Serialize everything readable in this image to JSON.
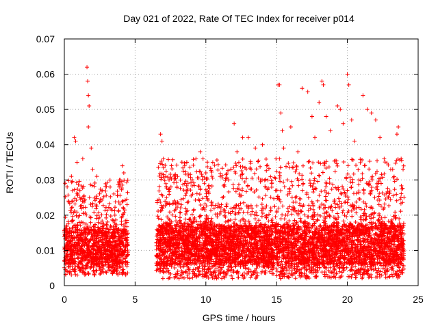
{
  "chart_data": {
    "type": "scatter",
    "title": "Day 021 of 2022, Rate Of TEC Index for receiver p014",
    "xlabel": "GPS time / hours",
    "ylabel": "ROTI / TECUs",
    "xlim": [
      0,
      25
    ],
    "ylim": [
      0,
      0.07
    ],
    "x_ticks": [
      "0",
      "5",
      "10",
      "15",
      "20",
      "25"
    ],
    "y_ticks": [
      "0",
      "0.01",
      "0.02",
      "0.03",
      "0.04",
      "0.05",
      "0.06",
      "0.07"
    ],
    "grid": true,
    "legend": "none",
    "marker": "+",
    "colors": {
      "series": "#ff0000",
      "grid": "#a0a0a0",
      "axes": "#000000"
    },
    "data_gap_hours": [
      4.5,
      6.5
    ],
    "series": [
      {
        "points": [
          [
            0.2,
            0.028
          ],
          [
            0.3,
            0.024
          ],
          [
            0.5,
            0.031
          ],
          [
            0.7,
            0.042
          ],
          [
            0.8,
            0.041
          ],
          [
            0.9,
            0.035
          ],
          [
            1.1,
            0.027
          ],
          [
            1.3,
            0.036
          ],
          [
            1.6,
            0.062
          ],
          [
            1.65,
            0.058
          ],
          [
            1.7,
            0.054
          ],
          [
            1.75,
            0.051
          ],
          [
            1.7,
            0.045
          ],
          [
            1.9,
            0.039
          ],
          [
            2.0,
            0.033
          ],
          [
            2.3,
            0.031
          ],
          [
            2.7,
            0.027
          ],
          [
            3.5,
            0.026
          ],
          [
            3.9,
            0.03
          ],
          [
            4.1,
            0.034
          ],
          [
            4.2,
            0.032
          ],
          [
            6.8,
            0.043
          ],
          [
            6.9,
            0.041
          ],
          [
            7.0,
            0.036
          ],
          [
            7.4,
            0.03
          ],
          [
            8.0,
            0.031
          ],
          [
            8.5,
            0.029
          ],
          [
            9.3,
            0.036
          ],
          [
            9.6,
            0.038
          ],
          [
            9.8,
            0.036
          ],
          [
            10.0,
            0.032
          ],
          [
            11.0,
            0.031
          ],
          [
            11.6,
            0.03
          ],
          [
            12.0,
            0.046
          ],
          [
            12.2,
            0.038
          ],
          [
            12.6,
            0.042
          ],
          [
            13.0,
            0.042
          ],
          [
            13.5,
            0.039
          ],
          [
            14.0,
            0.04
          ],
          [
            14.3,
            0.034
          ],
          [
            15.1,
            0.057
          ],
          [
            15.2,
            0.057
          ],
          [
            15.3,
            0.049
          ],
          [
            15.4,
            0.044
          ],
          [
            15.2,
            0.036
          ],
          [
            15.5,
            0.039
          ],
          [
            16.0,
            0.045
          ],
          [
            16.5,
            0.038
          ],
          [
            16.8,
            0.056
          ],
          [
            17.2,
            0.055
          ],
          [
            17.5,
            0.048
          ],
          [
            17.7,
            0.042
          ],
          [
            18.0,
            0.052
          ],
          [
            18.2,
            0.058
          ],
          [
            18.3,
            0.057
          ],
          [
            18.5,
            0.048
          ],
          [
            18.8,
            0.044
          ],
          [
            19.3,
            0.051
          ],
          [
            19.5,
            0.05
          ],
          [
            19.7,
            0.046
          ],
          [
            20.0,
            0.06
          ],
          [
            20.1,
            0.057
          ],
          [
            20.3,
            0.047
          ],
          [
            20.5,
            0.041
          ],
          [
            21.1,
            0.054
          ],
          [
            21.4,
            0.05
          ],
          [
            21.7,
            0.049
          ],
          [
            22.0,
            0.047
          ],
          [
            22.3,
            0.042
          ],
          [
            22.6,
            0.036
          ],
          [
            23.2,
            0.033
          ],
          [
            23.5,
            0.043
          ],
          [
            23.6,
            0.045
          ],
          [
            23.8,
            0.036
          ]
        ],
        "bulk_segments": [
          {
            "x_range": [
              0.0,
              4.5
            ],
            "y_low": 0.003,
            "y_core_low": 0.006,
            "y_core_high": 0.016,
            "y_high": 0.03,
            "density": 0.9
          },
          {
            "x_range": [
              6.5,
              24.0
            ],
            "y_low": 0.002,
            "y_core_low": 0.006,
            "y_core_high": 0.017,
            "y_high": 0.036,
            "density": 1.0
          }
        ]
      }
    ]
  }
}
